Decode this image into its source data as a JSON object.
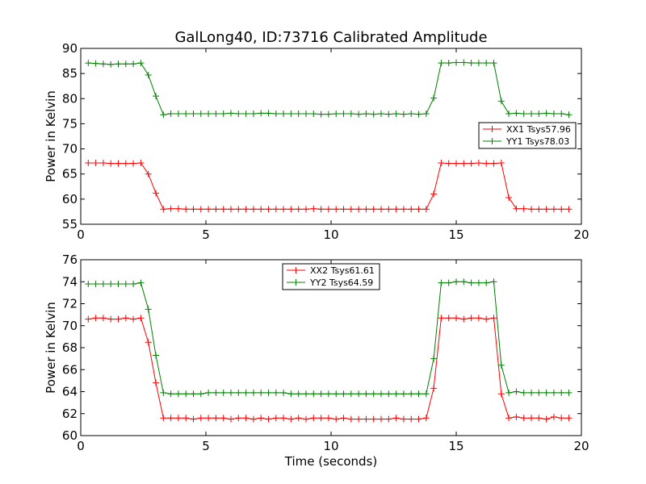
{
  "chart_data": [
    {
      "type": "line",
      "title": "GalLong40, ID:73716 Calibrated Amplitude",
      "xlabel": "",
      "ylabel": "Power in Kelvin",
      "xlim": [
        0,
        20
      ],
      "ylim": [
        55,
        90
      ],
      "x_ticks": [
        0,
        5,
        10,
        15,
        20
      ],
      "y_ticks": [
        55,
        60,
        65,
        70,
        75,
        80,
        85,
        90
      ],
      "grid": false,
      "legend_position": "center-right",
      "x": [
        0.3,
        0.6,
        0.9,
        1.2,
        1.5,
        1.8,
        2.1,
        2.4,
        2.7,
        3.0,
        3.3,
        3.6,
        3.9,
        4.2,
        4.5,
        4.8,
        5.1,
        5.4,
        5.7,
        6.0,
        6.3,
        6.6,
        6.9,
        7.2,
        7.5,
        7.8,
        8.1,
        8.4,
        8.7,
        9.0,
        9.3,
        9.6,
        9.9,
        10.2,
        10.5,
        10.8,
        11.1,
        11.4,
        11.7,
        12.0,
        12.3,
        12.6,
        12.9,
        13.2,
        13.5,
        13.8,
        14.1,
        14.4,
        14.7,
        15.0,
        15.3,
        15.6,
        15.9,
        16.2,
        16.5,
        16.8,
        17.1,
        17.4,
        17.7,
        18.0,
        18.3,
        18.6,
        18.9,
        19.2,
        19.5
      ],
      "series": [
        {
          "name": "XX1 Tsys57.96",
          "color": "#ff0000",
          "values": [
            67.2,
            67.2,
            67.2,
            67.1,
            67.1,
            67.1,
            67.1,
            67.2,
            65.0,
            61.2,
            58.0,
            58.1,
            58.1,
            58.0,
            58.0,
            58.0,
            58.0,
            58.0,
            58.0,
            58.0,
            58.0,
            58.0,
            58.0,
            58.0,
            58.0,
            58.0,
            58.0,
            58.0,
            58.0,
            58.0,
            58.1,
            58.0,
            58.0,
            58.0,
            58.0,
            58.0,
            58.0,
            58.0,
            58.0,
            58.0,
            58.0,
            58.0,
            58.0,
            58.0,
            58.0,
            58.0,
            61.0,
            67.2,
            67.1,
            67.1,
            67.1,
            67.1,
            67.2,
            67.1,
            67.1,
            67.2,
            60.3,
            58.1,
            58.1,
            58.0,
            58.0,
            58.0,
            58.0,
            58.0,
            58.0
          ]
        },
        {
          "name": "YY1 Tsys78.03",
          "color": "#008000",
          "values": [
            87.1,
            87.0,
            86.9,
            86.8,
            86.9,
            86.9,
            86.9,
            87.1,
            84.7,
            80.5,
            76.8,
            77.0,
            77.0,
            77.0,
            77.0,
            77.0,
            77.0,
            77.0,
            77.0,
            77.1,
            77.0,
            77.0,
            77.0,
            77.1,
            77.1,
            77.0,
            77.0,
            77.0,
            77.0,
            77.0,
            77.0,
            76.9,
            76.9,
            77.0,
            77.0,
            77.0,
            76.9,
            77.0,
            76.9,
            77.0,
            76.9,
            77.0,
            76.9,
            77.0,
            76.9,
            77.0,
            80.1,
            87.1,
            87.1,
            87.2,
            87.2,
            87.1,
            87.1,
            87.1,
            87.1,
            79.5,
            77.0,
            77.1,
            77.0,
            77.0,
            77.0,
            77.1,
            77.0,
            77.0,
            76.8
          ]
        }
      ]
    },
    {
      "type": "line",
      "title": "",
      "xlabel": "Time (seconds)",
      "ylabel": "Power in Kelvin",
      "xlim": [
        0,
        20
      ],
      "ylim": [
        60,
        76
      ],
      "x_ticks": [
        0,
        5,
        10,
        15,
        20
      ],
      "y_ticks": [
        60,
        62,
        64,
        66,
        68,
        70,
        72,
        74,
        76
      ],
      "grid": false,
      "legend_position": "top-center",
      "x": [
        0.3,
        0.6,
        0.9,
        1.2,
        1.5,
        1.8,
        2.1,
        2.4,
        2.7,
        3.0,
        3.3,
        3.6,
        3.9,
        4.2,
        4.5,
        4.8,
        5.1,
        5.4,
        5.7,
        6.0,
        6.3,
        6.6,
        6.9,
        7.2,
        7.5,
        7.8,
        8.1,
        8.4,
        8.7,
        9.0,
        9.3,
        9.6,
        9.9,
        10.2,
        10.5,
        10.8,
        11.1,
        11.4,
        11.7,
        12.0,
        12.3,
        12.6,
        12.9,
        13.2,
        13.5,
        13.8,
        14.1,
        14.4,
        14.7,
        15.0,
        15.3,
        15.6,
        15.9,
        16.2,
        16.5,
        16.8,
        17.1,
        17.4,
        17.7,
        18.0,
        18.3,
        18.6,
        18.9,
        19.2,
        19.5
      ],
      "series": [
        {
          "name": "XX2 Tsys61.61",
          "color": "#ff0000",
          "values": [
            70.6,
            70.7,
            70.7,
            70.6,
            70.6,
            70.7,
            70.6,
            70.7,
            68.5,
            64.8,
            61.6,
            61.6,
            61.6,
            61.6,
            61.5,
            61.6,
            61.6,
            61.6,
            61.6,
            61.5,
            61.6,
            61.6,
            61.5,
            61.6,
            61.5,
            61.6,
            61.6,
            61.5,
            61.6,
            61.5,
            61.6,
            61.6,
            61.6,
            61.5,
            61.6,
            61.5,
            61.5,
            61.5,
            61.5,
            61.5,
            61.5,
            61.6,
            61.5,
            61.5,
            61.5,
            61.6,
            64.3,
            70.7,
            70.7,
            70.7,
            70.6,
            70.7,
            70.7,
            70.6,
            70.7,
            63.8,
            61.6,
            61.7,
            61.6,
            61.6,
            61.6,
            61.5,
            61.7,
            61.6,
            61.6
          ]
        },
        {
          "name": "YY2 Tsys64.59",
          "color": "#008000",
          "values": [
            73.8,
            73.8,
            73.8,
            73.8,
            73.8,
            73.8,
            73.8,
            73.9,
            71.5,
            67.3,
            63.9,
            63.8,
            63.8,
            63.8,
            63.8,
            63.8,
            63.9,
            63.9,
            63.9,
            63.9,
            63.9,
            63.9,
            63.9,
            63.9,
            63.9,
            63.9,
            63.9,
            63.8,
            63.8,
            63.8,
            63.8,
            63.8,
            63.8,
            63.8,
            63.8,
            63.8,
            63.8,
            63.8,
            63.8,
            63.8,
            63.8,
            63.8,
            63.8,
            63.8,
            63.8,
            63.8,
            67.0,
            73.9,
            73.9,
            74.0,
            74.0,
            73.9,
            73.9,
            73.9,
            74.0,
            66.4,
            63.9,
            64.0,
            63.9,
            63.9,
            63.9,
            63.9,
            63.9,
            63.9,
            63.9
          ]
        }
      ]
    }
  ]
}
